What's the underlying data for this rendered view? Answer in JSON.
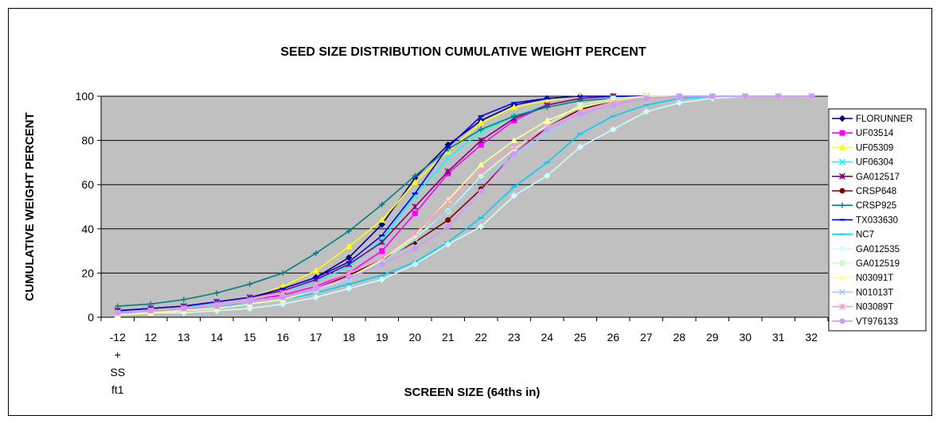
{
  "chart_data": {
    "type": "line",
    "title": "SEED SIZE DISTRIBUTION CUMULATIVE WEIGHT PERCENT",
    "xlabel": "SCREEN SIZE (64ths in)",
    "ylabel": "CUMULATIVE WEIGHT PERCENT",
    "categories": [
      "-12 + SS ft1",
      "12",
      "13",
      "14",
      "15",
      "16",
      "17",
      "18",
      "19",
      "20",
      "21",
      "22",
      "23",
      "24",
      "25",
      "26",
      "27",
      "28",
      "29",
      "30",
      "31",
      "32"
    ],
    "first_category_lines": [
      "-12",
      "+",
      "SS",
      "ft1"
    ],
    "ylim": [
      0,
      100
    ],
    "yticks": [
      0,
      20,
      40,
      60,
      80,
      100
    ],
    "grid": true,
    "plot_background": "#c0c0c0",
    "legend_position": "right",
    "series": [
      {
        "name": "FLORUNNER",
        "color": "#000080",
        "marker": "diamond",
        "values": [
          3,
          4,
          5,
          7,
          9,
          13,
          18,
          27,
          42,
          63,
          78,
          89,
          96,
          99,
          100,
          100,
          100,
          100,
          100,
          100,
          100,
          100
        ]
      },
      {
        "name": "UF03514",
        "color": "#ff00ff",
        "marker": "square",
        "values": [
          3,
          4,
          5,
          6,
          8,
          10,
          14,
          20,
          30,
          47,
          65,
          78,
          89,
          96,
          99,
          100,
          100,
          100,
          100,
          100,
          100,
          100
        ]
      },
      {
        "name": "UF05309",
        "color": "#ffff00",
        "marker": "triangle",
        "values": [
          2,
          3,
          5,
          7,
          9,
          14,
          21,
          32,
          44,
          61,
          75,
          88,
          95,
          98,
          100,
          100,
          100,
          100,
          100,
          100,
          100,
          100
        ]
      },
      {
        "name": "UF06304",
        "color": "#00ffff",
        "marker": "x",
        "values": [
          3,
          4,
          5,
          6,
          8,
          11,
          16,
          23,
          35,
          55,
          72,
          84,
          91,
          96,
          99,
          100,
          100,
          100,
          100,
          100,
          100,
          100
        ]
      },
      {
        "name": "GA012517",
        "color": "#800080",
        "marker": "star",
        "values": [
          3,
          4,
          5,
          7,
          9,
          12,
          17,
          24,
          34,
          50,
          66,
          80,
          90,
          96,
          99,
          100,
          100,
          100,
          100,
          100,
          100,
          100
        ]
      },
      {
        "name": "CRSP648",
        "color": "#800000",
        "marker": "circle",
        "values": [
          2,
          3,
          4,
          5,
          7,
          9,
          13,
          19,
          26,
          34,
          44,
          58,
          74,
          86,
          94,
          98,
          100,
          100,
          100,
          100,
          100,
          100
        ]
      },
      {
        "name": "CRSP925",
        "color": "#008080",
        "marker": "plus",
        "values": [
          5,
          6,
          8,
          11,
          15,
          20,
          29,
          39,
          51,
          64,
          76,
          85,
          91,
          95,
          98,
          99,
          100,
          100,
          100,
          100,
          100,
          100
        ]
      },
      {
        "name": "TX033630",
        "color": "#0000ff",
        "marker": "dash",
        "values": [
          3,
          4,
          5,
          7,
          9,
          13,
          18,
          25,
          37,
          56,
          77,
          91,
          97,
          99,
          100,
          100,
          100,
          100,
          100,
          100,
          100,
          100
        ]
      },
      {
        "name": "NC7",
        "color": "#00ccff",
        "marker": "dash",
        "values": [
          2,
          3,
          4,
          5,
          6,
          8,
          11,
          15,
          19,
          25,
          34,
          45,
          59,
          70,
          83,
          91,
          96,
          99,
          100,
          100,
          100,
          100
        ]
      },
      {
        "name": "GA012535",
        "color": "#ccffff",
        "marker": "diamond",
        "values": [
          1,
          2,
          2,
          3,
          4,
          6,
          9,
          13,
          17,
          24,
          33,
          41,
          55,
          64,
          77,
          85,
          93,
          97,
          99,
          100,
          100,
          100
        ]
      },
      {
        "name": "GA012519",
        "color": "#ccffcc",
        "marker": "square",
        "values": [
          2,
          3,
          4,
          5,
          7,
          9,
          13,
          18,
          25,
          36,
          48,
          64,
          76,
          87,
          96,
          99,
          100,
          100,
          100,
          100,
          100,
          100
        ]
      },
      {
        "name": "N03091T",
        "color": "#ffff99",
        "marker": "triangle",
        "values": [
          1,
          2,
          3,
          4,
          6,
          8,
          12,
          18,
          26,
          37,
          53,
          69,
          80,
          89,
          95,
          98,
          100,
          100,
          100,
          100,
          100,
          100
        ]
      },
      {
        "name": "N01013T",
        "color": "#99ccff",
        "marker": "x",
        "values": [
          2,
          3,
          4,
          5,
          7,
          9,
          12,
          17,
          25,
          35,
          48,
          62,
          73,
          83,
          92,
          97,
          99,
          100,
          100,
          100,
          100,
          100
        ]
      },
      {
        "name": "N03089T",
        "color": "#ff99cc",
        "marker": "star",
        "values": [
          2,
          3,
          4,
          6,
          8,
          11,
          15,
          20,
          27,
          38,
          52,
          66,
          77,
          86,
          93,
          97,
          99,
          100,
          100,
          100,
          100,
          100
        ]
      },
      {
        "name": "VT976133",
        "color": "#cc99ff",
        "marker": "circle",
        "values": [
          2,
          3,
          4,
          5,
          7,
          9,
          13,
          18,
          24,
          31,
          41,
          57,
          74,
          85,
          92,
          96,
          99,
          100,
          100,
          100,
          100,
          100
        ]
      }
    ]
  }
}
